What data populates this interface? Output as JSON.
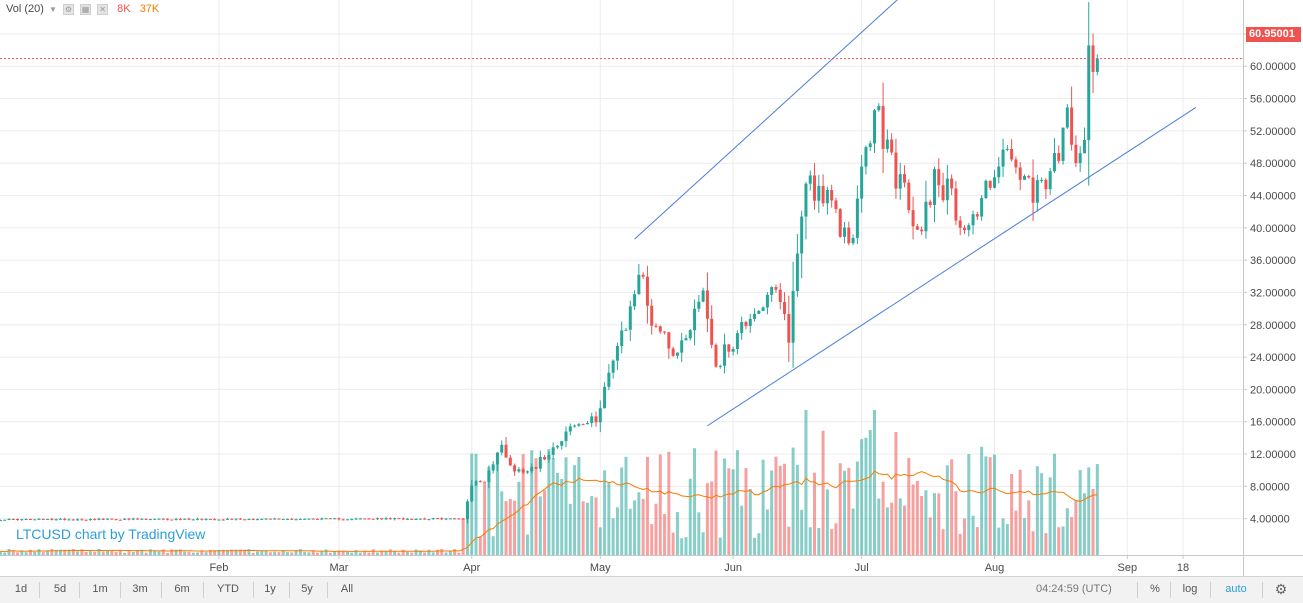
{
  "legend": {
    "label": "Vol (20)",
    "value_1": "8K",
    "value_2": "37K",
    "value_1_color": "#ef5350",
    "value_2_color": "#f57c00"
  },
  "watermark": "LTCUSD chart by TradingView",
  "last_price_label": "60.95001",
  "toolbar": {
    "ranges": [
      "1d",
      "5d",
      "1m",
      "3m",
      "6m",
      "YTD",
      "1y",
      "5y",
      "All"
    ],
    "time": "04:24:59 (UTC)",
    "percent_label": "%",
    "log_label": "log",
    "auto_label": "auto"
  },
  "chart_data": {
    "type": "candlestick",
    "symbol": "LTCUSD",
    "colors": {
      "up": "#26a69a",
      "down": "#ef5350",
      "channel": "#4a7fd8",
      "volume_ma": "#f57c00"
    },
    "y_axis": {
      "position": "right",
      "ticks": [
        "4.00000",
        "8.00000",
        "12.00000",
        "16.00000",
        "20.00000",
        "24.00000",
        "28.00000",
        "32.00000",
        "36.00000",
        "40.00000",
        "44.00000",
        "48.00000",
        "52.00000",
        "56.00000",
        "60.00000",
        "64.00000"
      ],
      "tick_values": [
        4,
        8,
        12,
        16,
        20,
        24,
        28,
        32,
        36,
        40,
        44,
        48,
        52,
        56,
        60,
        64
      ],
      "range": [
        -0.5,
        68.2
      ]
    },
    "x_axis": {
      "labels": [
        "Feb",
        "Mar",
        "Apr",
        "May",
        "Jun",
        "Jul",
        "Aug",
        "Sep",
        "18"
      ],
      "label_days": [
        36,
        64,
        95,
        125,
        156,
        186,
        217,
        248,
        261
      ],
      "range": [
        -15.1,
        275
      ]
    },
    "last_price": 60.95001,
    "channel_lines": [
      {
        "points": [
          [
            133,
            38.6
          ],
          [
            198,
            70
          ]
        ]
      },
      {
        "points": [
          [
            150,
            15.5
          ],
          [
            264,
            54.9
          ]
        ]
      }
    ],
    "price_keypoints": [
      [
        -15,
        3.9
      ],
      [
        93,
        4.0
      ],
      [
        95,
        8.3
      ],
      [
        98,
        8.8
      ],
      [
        102,
        13.0
      ],
      [
        105,
        9.8
      ],
      [
        110,
        10.6
      ],
      [
        118,
        15.3
      ],
      [
        124,
        16.1
      ],
      [
        126,
        20.8
      ],
      [
        131,
        27.6
      ],
      [
        134,
        34.8
      ],
      [
        137,
        28.8
      ],
      [
        143,
        24.4
      ],
      [
        149,
        32.3
      ],
      [
        152,
        23.0
      ],
      [
        157,
        26.8
      ],
      [
        160,
        29.5
      ],
      [
        166,
        31.8
      ],
      [
        169,
        26.8
      ],
      [
        173,
        46.5
      ],
      [
        177,
        44.2
      ],
      [
        180,
        41.0
      ],
      [
        183,
        38.2
      ],
      [
        185,
        42.8
      ],
      [
        189,
        54.7
      ],
      [
        193,
        48.2
      ],
      [
        196,
        44.0
      ],
      [
        199,
        38.8
      ],
      [
        203,
        46.8
      ],
      [
        206,
        44.4
      ],
      [
        210,
        40.4
      ],
      [
        213,
        41.8
      ],
      [
        216,
        46.5
      ],
      [
        219,
        49.0
      ],
      [
        223,
        46.5
      ],
      [
        226,
        43.2
      ],
      [
        229,
        46.0
      ],
      [
        232,
        47.8
      ],
      [
        234,
        55.0
      ],
      [
        236,
        50.2
      ],
      [
        238,
        51.5
      ],
      [
        239,
        63.0
      ],
      [
        240,
        61.5
      ],
      [
        241,
        60.95
      ]
    ],
    "volume_note": "relative volume bars with 20-period moving average"
  }
}
